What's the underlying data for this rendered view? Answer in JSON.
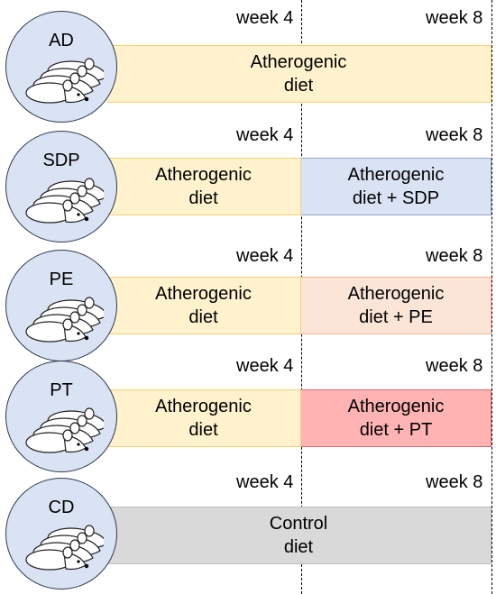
{
  "week_labels": {
    "week4": "week 4",
    "week8": "week 8"
  },
  "groups": [
    {
      "label": "AD",
      "bars": [
        {
          "line1": "Atherogenic",
          "line2": "diet",
          "color": "#fff2cc",
          "border": "#f1d27a"
        }
      ]
    },
    {
      "label": "SDP",
      "bars": [
        {
          "line1": "Atherogenic",
          "line2": "diet",
          "color": "#fff2cc",
          "border": "#f1d27a"
        },
        {
          "line1": "Atherogenic",
          "line2": "diet + SDP",
          "color": "#dae3f3",
          "border": "#8fa8cc"
        }
      ]
    },
    {
      "label": "PE",
      "bars": [
        {
          "line1": "Atherogenic",
          "line2": "diet",
          "color": "#fff2cc",
          "border": "#f1d27a"
        },
        {
          "line1": "Atherogenic",
          "line2": "diet + PE",
          "color": "#fbe5d6",
          "border": "#f0b896"
        }
      ]
    },
    {
      "label": "PT",
      "bars": [
        {
          "line1": "Atherogenic",
          "line2": "diet",
          "color": "#fff2cc",
          "border": "#f1d27a"
        },
        {
          "line1": "Atherogenic",
          "line2": "diet + PT",
          "color": "#ffb3b3",
          "border": "#e06b6b"
        }
      ]
    },
    {
      "label": "CD",
      "bars": [
        {
          "line1": "Control",
          "line2": "diet",
          "color": "#d9d9d9",
          "border": "#bfbfbf"
        }
      ]
    }
  ]
}
